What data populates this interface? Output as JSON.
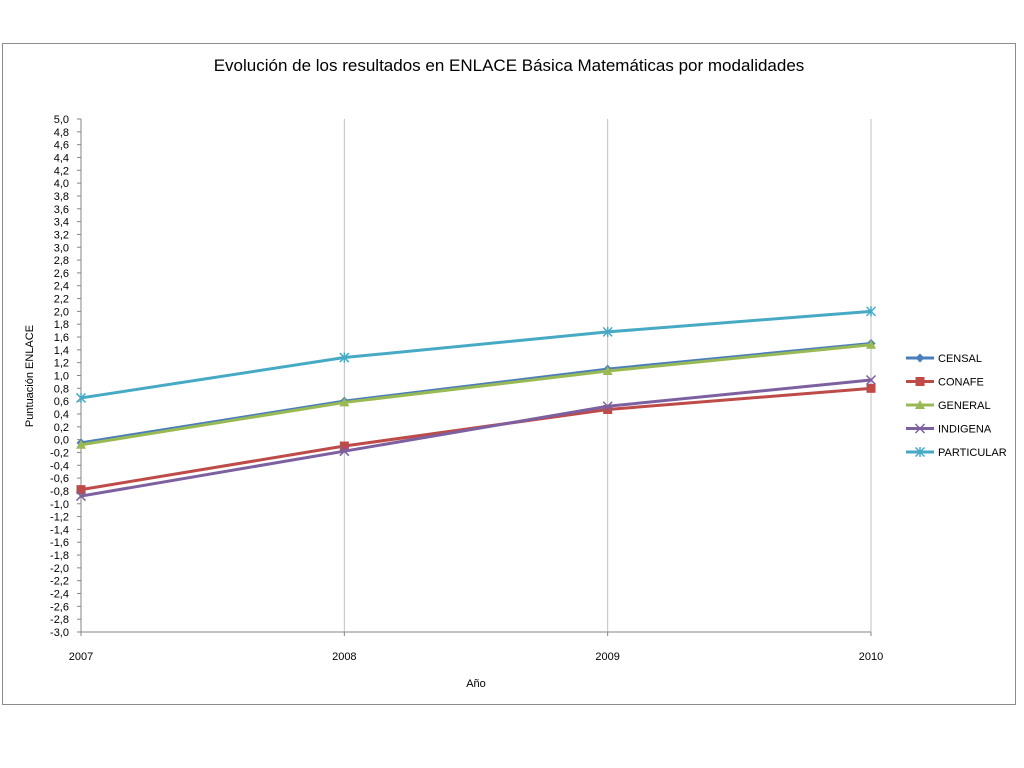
{
  "chart_data": {
    "type": "line",
    "title": "Evolución de los resultados en ENLACE Básica Matemáticas por modalidades",
    "xlabel": "Año",
    "ylabel": "Puntuación ENLACE",
    "categories": [
      "2007",
      "2008",
      "2009",
      "2010"
    ],
    "ylim": [
      -3.0,
      5.0
    ],
    "ytick_step": 0.2,
    "ytick_labels": [
      "5,0",
      "4,8",
      "4,6",
      "4,4",
      "4,2",
      "4,0",
      "3,8",
      "3,6",
      "3,4",
      "3,2",
      "3,0",
      "2,8",
      "2,6",
      "2,4",
      "2,2",
      "2,0",
      "1,8",
      "1,6",
      "1,4",
      "1,2",
      "1,0",
      "0,8",
      "0,6",
      "0,4",
      "0,2",
      "0,0",
      "-0,2",
      "-0,4",
      "-0,6",
      "-0,8",
      "-1,0",
      "-1,2",
      "-1,4",
      "-1,6",
      "-1,8",
      "-2,0",
      "-2,2",
      "-2,4",
      "-2,6",
      "-2,8",
      "-3,0"
    ],
    "grid": "vertical",
    "legend_position": "right",
    "series": [
      {
        "name": "CENSAL",
        "values": [
          -0.05,
          0.6,
          1.1,
          1.5
        ],
        "color": "#4a7ebb",
        "marker": "diamond"
      },
      {
        "name": "CONAFE",
        "values": [
          -0.78,
          -0.1,
          0.47,
          0.8
        ],
        "color": "#be4b48",
        "marker": "square"
      },
      {
        "name": "GENERAL",
        "values": [
          -0.08,
          0.58,
          1.07,
          1.48
        ],
        "color": "#98b954",
        "marker": "triangle"
      },
      {
        "name": "INDIGENA",
        "values": [
          -0.88,
          -0.18,
          0.52,
          0.93
        ],
        "color": "#7d60a0",
        "marker": "x"
      },
      {
        "name": "PARTICULAR",
        "values": [
          0.65,
          1.28,
          1.68,
          2.0
        ],
        "color": "#46aac5",
        "marker": "star"
      }
    ]
  }
}
